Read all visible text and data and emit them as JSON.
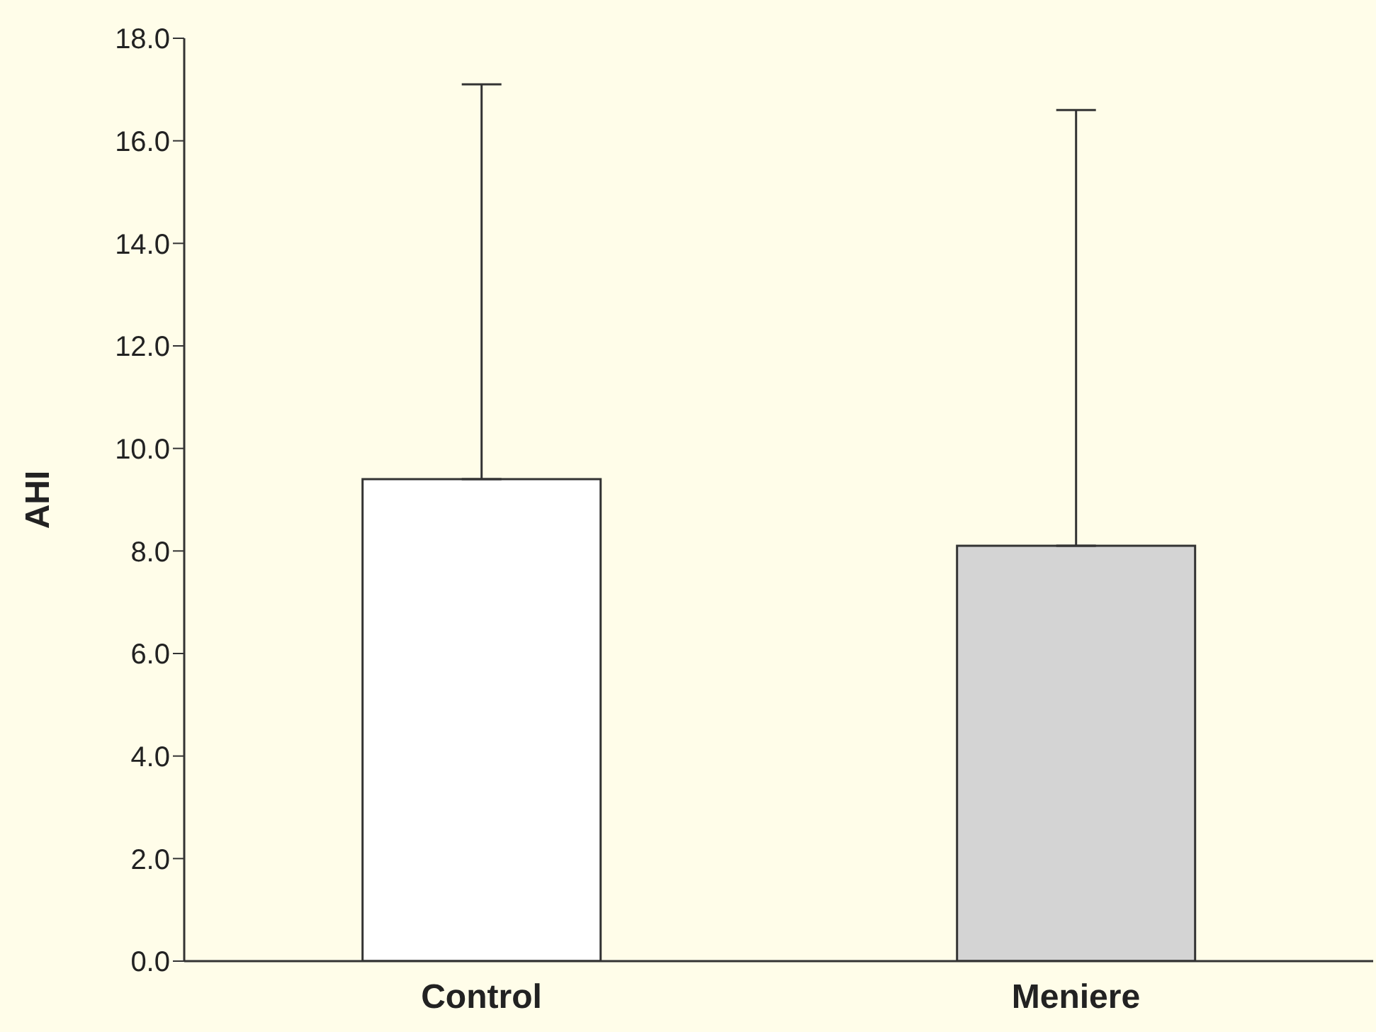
{
  "chart_data": {
    "type": "bar",
    "ylabel": "AHI",
    "categories": [
      "Control",
      "Meniere"
    ],
    "values": [
      9.4,
      8.1
    ],
    "colors": [
      "#ffffff",
      "#d4d4d4"
    ],
    "errors": [
      [
        9.4,
        17.1
      ],
      [
        8.1,
        16.6
      ]
    ],
    "ylim": [
      0,
      18
    ],
    "yticks": [
      {
        "value": 0,
        "label": "0.0"
      },
      {
        "value": 2,
        "label": "2.0"
      },
      {
        "value": 4,
        "label": "4.0"
      },
      {
        "value": 6,
        "label": "6.0"
      },
      {
        "value": 8,
        "label": "8.0"
      },
      {
        "value": 10,
        "label": "10.0"
      },
      {
        "value": 12,
        "label": "12.0"
      },
      {
        "value": 14,
        "label": "14.0"
      },
      {
        "value": 16,
        "label": "16.0"
      },
      {
        "value": 18,
        "label": "18.0"
      }
    ],
    "grid": false,
    "legend": false
  }
}
